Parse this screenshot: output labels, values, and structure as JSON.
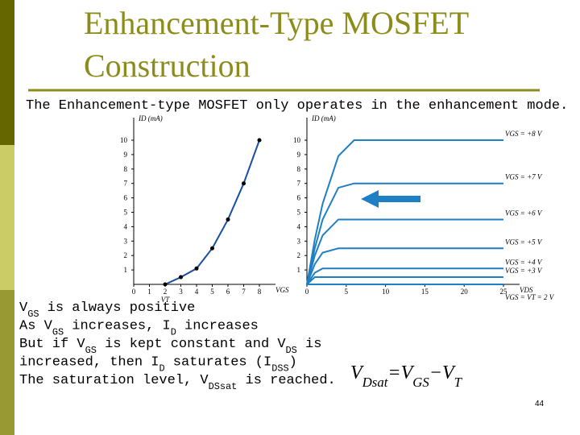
{
  "slide": {
    "title": [
      "Enhancement-Type MOSFET",
      "Construction"
    ],
    "subtitle": "The Enhancement-type MOSFET only operates in the enhancement mode.",
    "bullets": [
      [
        "V",
        "GS",
        " is always positive"
      ],
      [
        "As V",
        "GS",
        " increases, I",
        "D",
        " increases"
      ],
      [
        "But if V",
        "GS",
        " is kept constant and V",
        "DS",
        " is"
      ],
      [
        "increased, then I",
        "D",
        " saturates (I",
        "DSS",
        ")"
      ],
      [
        "The saturation level, V",
        "DSsat",
        "  is reached."
      ]
    ],
    "formula": [
      "V",
      "Dsat",
      "=V",
      "GS",
      "−V",
      "T"
    ],
    "page_number": "44"
  },
  "chart_data": [
    {
      "type": "line",
      "y_label": "ID (mA)",
      "x_label": "VGS",
      "annotation": "VT",
      "x": [
        2,
        3,
        4,
        5,
        6,
        7,
        8
      ],
      "values": [
        0,
        0.5,
        1.1,
        2.5,
        4.5,
        7,
        10
      ],
      "color": "#1a4fa0",
      "xlim": [
        0,
        8
      ],
      "ylim": [
        0,
        10
      ],
      "xticks": [
        0,
        1,
        2,
        3,
        4,
        5,
        6,
        7,
        8
      ],
      "yticks": [
        1,
        2,
        3,
        4,
        5,
        6,
        7,
        8,
        9,
        10
      ]
    },
    {
      "type": "line",
      "y_label": "ID (mA)",
      "x_label": "VDS",
      "x": [
        0,
        1,
        2,
        4,
        6,
        10,
        25
      ],
      "series": [
        {
          "name": "VGS = +8 V",
          "color": "#1f7fc4",
          "values": [
            0,
            3.1,
            5.6,
            8.9,
            10,
            10,
            10
          ]
        },
        {
          "name": "VGS = +7 V",
          "color": "#1f7fc4",
          "values": [
            0,
            2.5,
            4.5,
            6.7,
            7,
            7,
            7
          ]
        },
        {
          "name": "VGS = +6 V",
          "color": "#1f7fc4",
          "values": [
            0,
            2,
            3.4,
            4.5,
            4.5,
            4.5,
            4.5
          ]
        },
        {
          "name": "VGS = +5 V",
          "color": "#1f7fc4",
          "values": [
            0,
            1.4,
            2.2,
            2.5,
            2.5,
            2.5,
            2.5
          ]
        },
        {
          "name": "VGS = +4 V",
          "color": "#1f7fc4",
          "values": [
            0,
            0.8,
            1.1,
            1.1,
            1.1,
            1.1,
            1.1
          ]
        },
        {
          "name": "VGS = +3 V",
          "color": "#1f7fc4",
          "values": [
            0,
            0.5,
            0.5,
            0.5,
            0.5,
            0.5,
            0.5
          ]
        },
        {
          "name": "VGS = VT = 2 V",
          "color": "#1f7fc4",
          "values": [
            0,
            0,
            0,
            0,
            0,
            0,
            0
          ]
        }
      ],
      "xlim": [
        0,
        25
      ],
      "ylim": [
        0,
        10
      ],
      "xticks": [
        0,
        5,
        10,
        15,
        20,
        25
      ],
      "yticks": [
        1,
        2,
        3,
        4,
        5,
        6,
        7,
        8,
        9,
        10
      ]
    }
  ]
}
